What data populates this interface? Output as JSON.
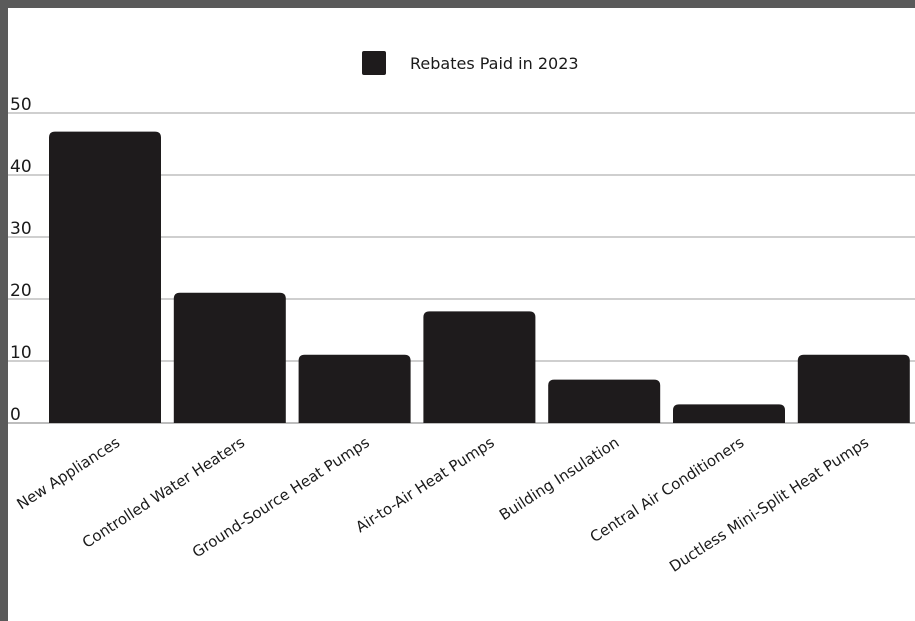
{
  "chart_data": {
    "type": "bar",
    "title": "",
    "xlabel": "",
    "ylabel": "",
    "categories": [
      "New Appliances",
      "Controlled Water Heaters",
      "Ground-Source Heat Pumps",
      "Air-to-Air Heat Pumps",
      "Building Insulation",
      "Central Air Conditioners",
      "Ductless Mini-Split Heat Pumps"
    ],
    "series": [
      {
        "name": "Rebates Paid in 2023",
        "values": [
          47,
          21,
          11,
          18,
          7,
          3,
          11
        ],
        "color": "#1e1b1c"
      }
    ],
    "ylim": [
      0,
      50
    ],
    "yticks": [
      0,
      10,
      20,
      30,
      40,
      50
    ],
    "grid": true,
    "legend": "top-center"
  }
}
